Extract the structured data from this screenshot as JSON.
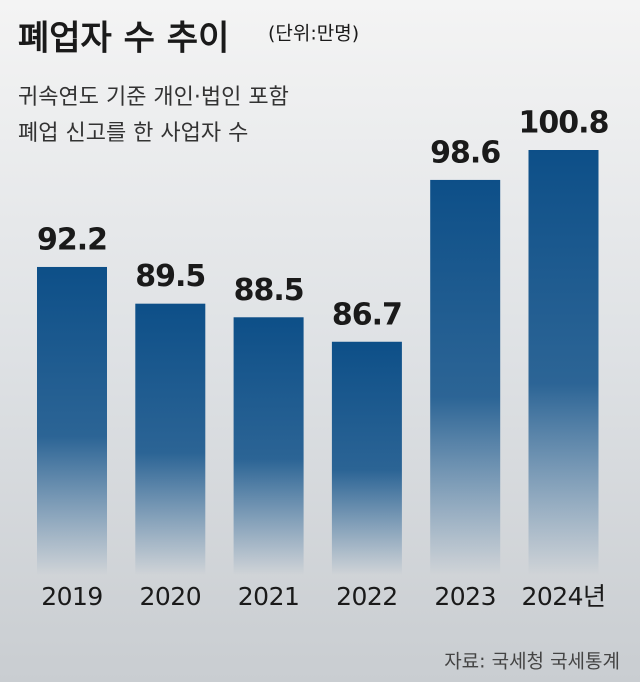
{
  "chart_data": {
    "type": "bar",
    "title": "폐업자 수 추이",
    "unit": "(단위:만명)",
    "subtitle": [
      "귀속연도 기준 개인·법인 포함",
      "폐업 신고를 한 사업자 수"
    ],
    "categories": [
      "2019",
      "2020",
      "2021",
      "2022",
      "2023",
      "2024년"
    ],
    "values": [
      92.2,
      89.5,
      88.5,
      86.7,
      98.6,
      100.8
    ],
    "color": "#0d4f88",
    "source": "자료: 국세청 국세통계"
  }
}
